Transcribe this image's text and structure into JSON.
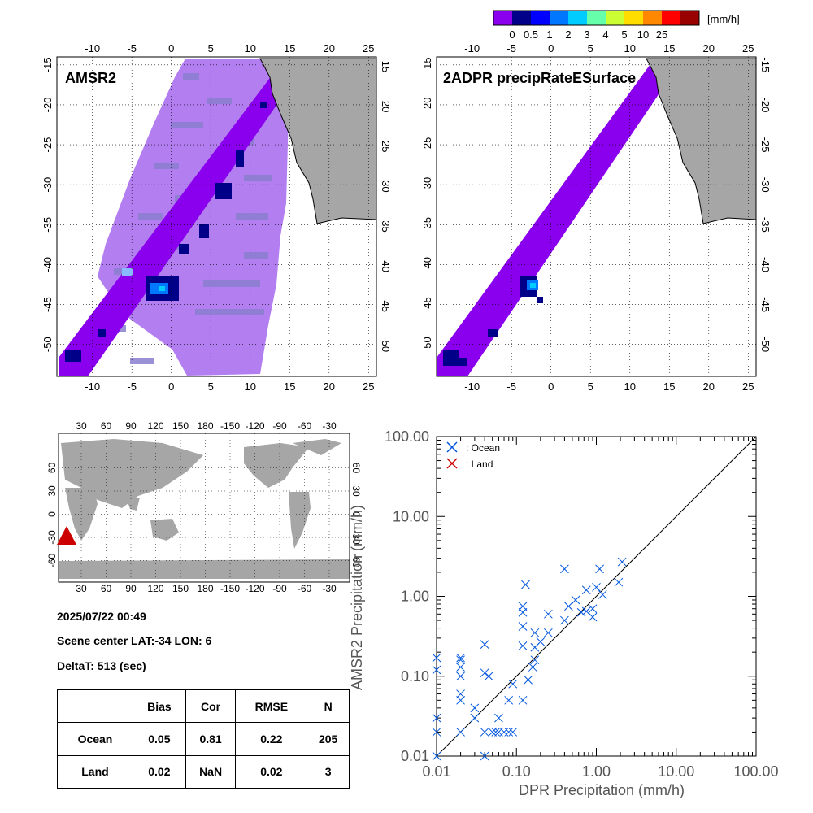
{
  "colorbar": {
    "unit": "[mm/h]",
    "colors": [
      "#8a00ee",
      "#000088",
      "#0000ff",
      "#0077ff",
      "#00ccff",
      "#66ffaa",
      "#ccff33",
      "#ffdd00",
      "#ff8800",
      "#ff0000",
      "#990000"
    ],
    "labels": [
      "0",
      "0.5",
      "1",
      "2",
      "3",
      "4",
      "5",
      "10",
      "25"
    ]
  },
  "panels": {
    "amsr2": {
      "title": "AMSR2",
      "lon_ticks": [
        "-10",
        "-5",
        "0",
        "5",
        "10",
        "15",
        "20",
        "25"
      ],
      "lat_ticks": [
        "-15",
        "-20",
        "-25",
        "-30",
        "-35",
        "-40",
        "-45",
        "-50"
      ]
    },
    "dpr": {
      "title": "2ADPR precipRateESurface",
      "lon_ticks": [
        "-10",
        "-5",
        "0",
        "5",
        "10",
        "15",
        "20",
        "25"
      ],
      "lat_ticks": [
        "-15",
        "-20",
        "-25",
        "-30",
        "-35",
        "-40",
        "-45",
        "-50"
      ]
    }
  },
  "world_map": {
    "lon_ticks": [
      "30",
      "60",
      "90",
      "120",
      "150",
      "180",
      "-150",
      "-120",
      "-90",
      "-60",
      "-30"
    ],
    "lat_ticks": [
      "60",
      "30",
      "0",
      "-30",
      "-60"
    ],
    "marker_color": "#cc0000"
  },
  "info": {
    "datetime": "2025/07/22 00:49",
    "scene_center": "Scene center LAT:-34   LON:   6",
    "delta_t": "DeltaT:  513 (sec)"
  },
  "stats": {
    "headers": [
      "",
      "Bias",
      "Cor",
      "RMSE",
      "N"
    ],
    "rows": [
      [
        "Ocean",
        "0.05",
        "0.81",
        "0.22",
        "205"
      ],
      [
        "Land",
        "0.02",
        "NaN",
        "0.02",
        "3"
      ]
    ]
  },
  "chart_data": {
    "type": "scatter",
    "xlabel": "DPR Precipitation (mm/h)",
    "ylabel": "AMSR2 Precipitation (mm/h)",
    "xscale": "log",
    "yscale": "log",
    "xlim": [
      0.01,
      100
    ],
    "ylim": [
      0.01,
      100
    ],
    "tick_labels": [
      "0.01",
      "0.10",
      "1.00",
      "10.00",
      "100.00"
    ],
    "legend_placement": "top-left",
    "series": [
      {
        "name": ": Ocean",
        "color": "#0055dd",
        "points": [
          [
            0.01,
            0.01
          ],
          [
            0.01,
            0.02
          ],
          [
            0.01,
            0.03
          ],
          [
            0.01,
            0.12
          ],
          [
            0.01,
            0.17
          ],
          [
            0.02,
            0.02
          ],
          [
            0.02,
            0.05
          ],
          [
            0.02,
            0.06
          ],
          [
            0.02,
            0.1
          ],
          [
            0.02,
            0.13
          ],
          [
            0.02,
            0.16
          ],
          [
            0.02,
            0.17
          ],
          [
            0.03,
            0.03
          ],
          [
            0.03,
            0.04
          ],
          [
            0.04,
            0.01
          ],
          [
            0.04,
            0.02
          ],
          [
            0.04,
            0.11
          ],
          [
            0.04,
            0.25
          ],
          [
            0.045,
            0.1
          ],
          [
            0.05,
            0.02
          ],
          [
            0.055,
            0.02
          ],
          [
            0.06,
            0.02
          ],
          [
            0.06,
            0.03
          ],
          [
            0.07,
            0.02
          ],
          [
            0.08,
            0.02
          ],
          [
            0.08,
            0.05
          ],
          [
            0.09,
            0.02
          ],
          [
            0.09,
            0.08
          ],
          [
            0.12,
            0.05
          ],
          [
            0.12,
            0.24
          ],
          [
            0.12,
            0.42
          ],
          [
            0.12,
            0.63
          ],
          [
            0.12,
            0.75
          ],
          [
            0.13,
            1.4
          ],
          [
            0.14,
            0.09
          ],
          [
            0.16,
            0.13
          ],
          [
            0.17,
            0.16
          ],
          [
            0.17,
            0.23
          ],
          [
            0.17,
            0.35
          ],
          [
            0.2,
            0.27
          ],
          [
            0.25,
            0.35
          ],
          [
            0.25,
            0.6
          ],
          [
            0.4,
            0.5
          ],
          [
            0.4,
            2.2
          ],
          [
            0.45,
            0.75
          ],
          [
            0.55,
            0.9
          ],
          [
            0.65,
            0.63
          ],
          [
            0.75,
            0.65
          ],
          [
            0.75,
            1.2
          ],
          [
            0.9,
            0.55
          ],
          [
            0.9,
            0.7
          ],
          [
            1.0,
            1.3
          ],
          [
            1.2,
            1.05
          ],
          [
            1.1,
            2.2
          ],
          [
            1.9,
            1.5
          ],
          [
            2.1,
            2.7
          ]
        ]
      },
      {
        "name": ": Land",
        "color": "#cc0000",
        "points": []
      }
    ]
  }
}
